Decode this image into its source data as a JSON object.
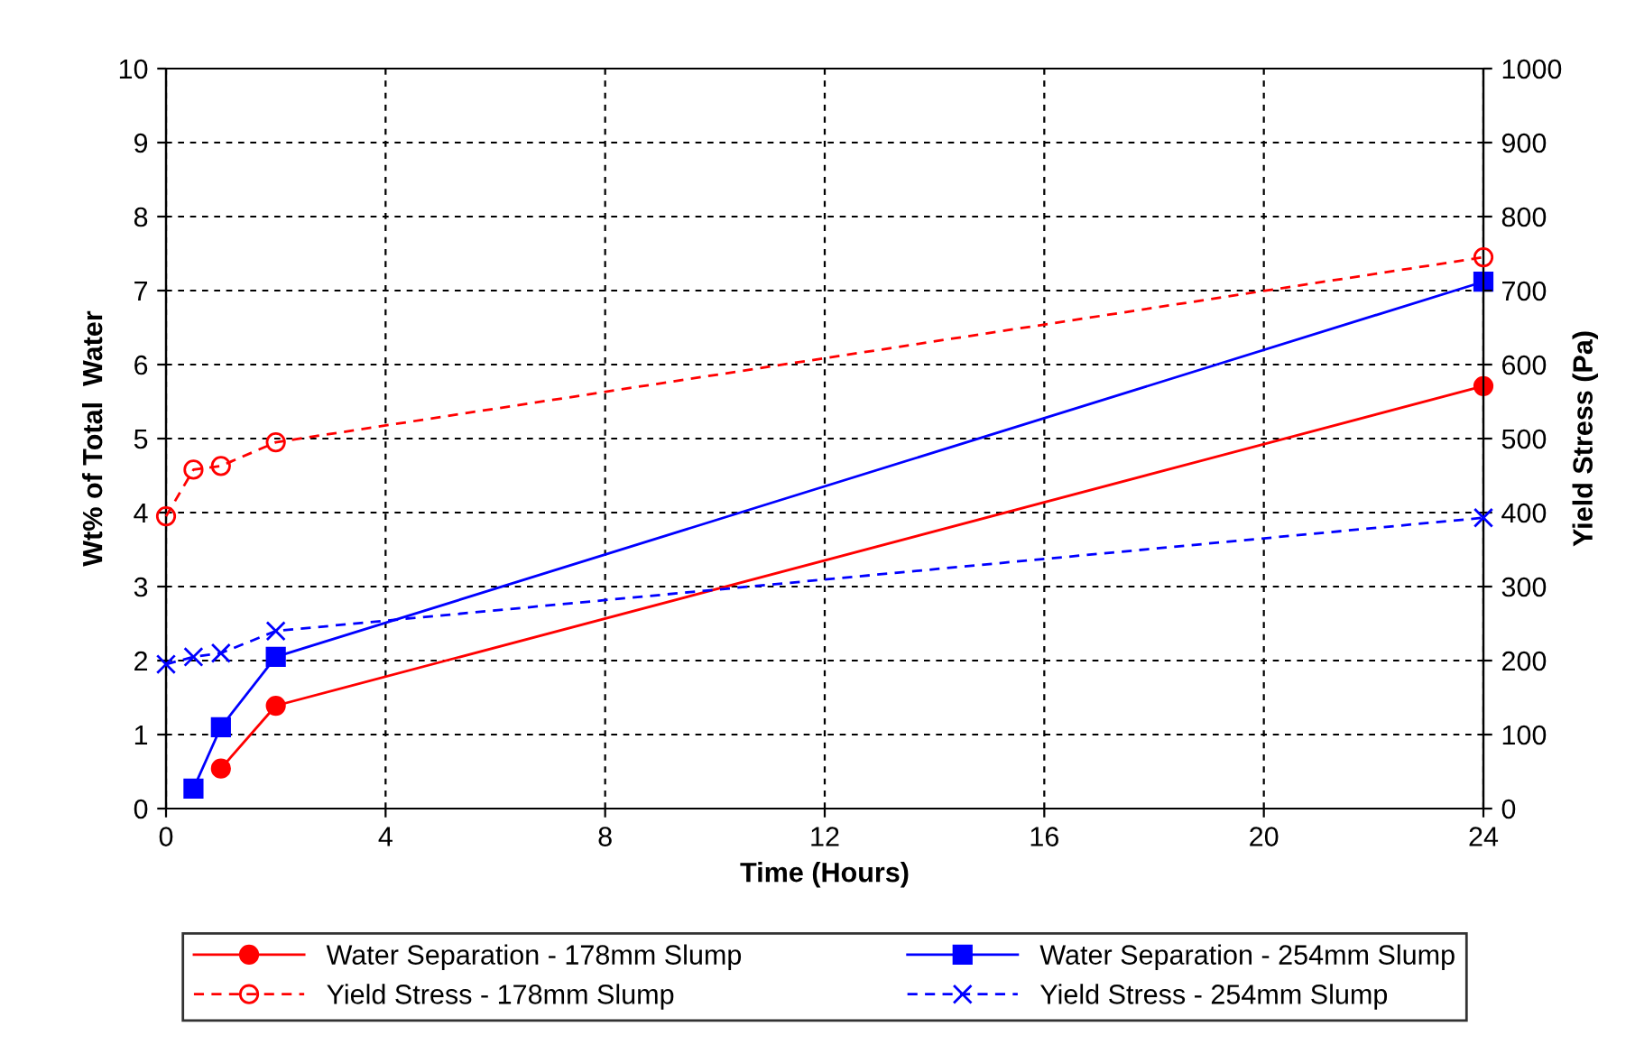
{
  "chart_data": {
    "type": "line",
    "xlabel": "Time (Hours)",
    "ylabel": "Wt% of Total  Water",
    "y2label": "Yield Stress (Pa)",
    "xlim": [
      0,
      24
    ],
    "xticks": [
      0,
      4,
      8,
      12,
      16,
      20,
      24
    ],
    "ylim": [
      0,
      10
    ],
    "yticks": [
      0,
      1,
      2,
      3,
      4,
      5,
      6,
      7,
      8,
      9,
      10
    ],
    "y2lim": [
      0,
      1000
    ],
    "y2ticks": [
      0,
      100,
      200,
      300,
      400,
      500,
      600,
      700,
      800,
      900,
      1000
    ],
    "grid": true,
    "legend": "bottom",
    "series": [
      {
        "name": "Water Separation - 178mm Slump",
        "color": "#ff0000",
        "x": [
          1,
          2,
          24
        ],
        "values": [
          0.54,
          1.39,
          5.71
        ],
        "marker": "circle",
        "line_style": "solid"
      },
      {
        "name": "Water Separation - 254mm Slump",
        "color": "#0000ff",
        "x": [
          0.5,
          1,
          2,
          24
        ],
        "values": [
          0.27,
          1.1,
          2.05,
          7.12
        ],
        "marker": "square",
        "line_style": "solid"
      },
      {
        "name": "Yield Stress - 178mm Slump",
        "color": "#ff0000",
        "x": [
          0,
          0.5,
          1,
          2,
          24
        ],
        "values": [
          395,
          458,
          463,
          495,
          745
        ],
        "marker": "circle",
        "line_style": "dashed",
        "axis": "y2"
      },
      {
        "name": "Yield Stress - 254mm Slump",
        "color": "#0000ff",
        "x": [
          0,
          0.5,
          1,
          2,
          24
        ],
        "values": [
          195,
          205,
          210,
          240,
          393
        ],
        "marker": "cross",
        "line_style": "dashed",
        "axis": "y2"
      }
    ]
  }
}
